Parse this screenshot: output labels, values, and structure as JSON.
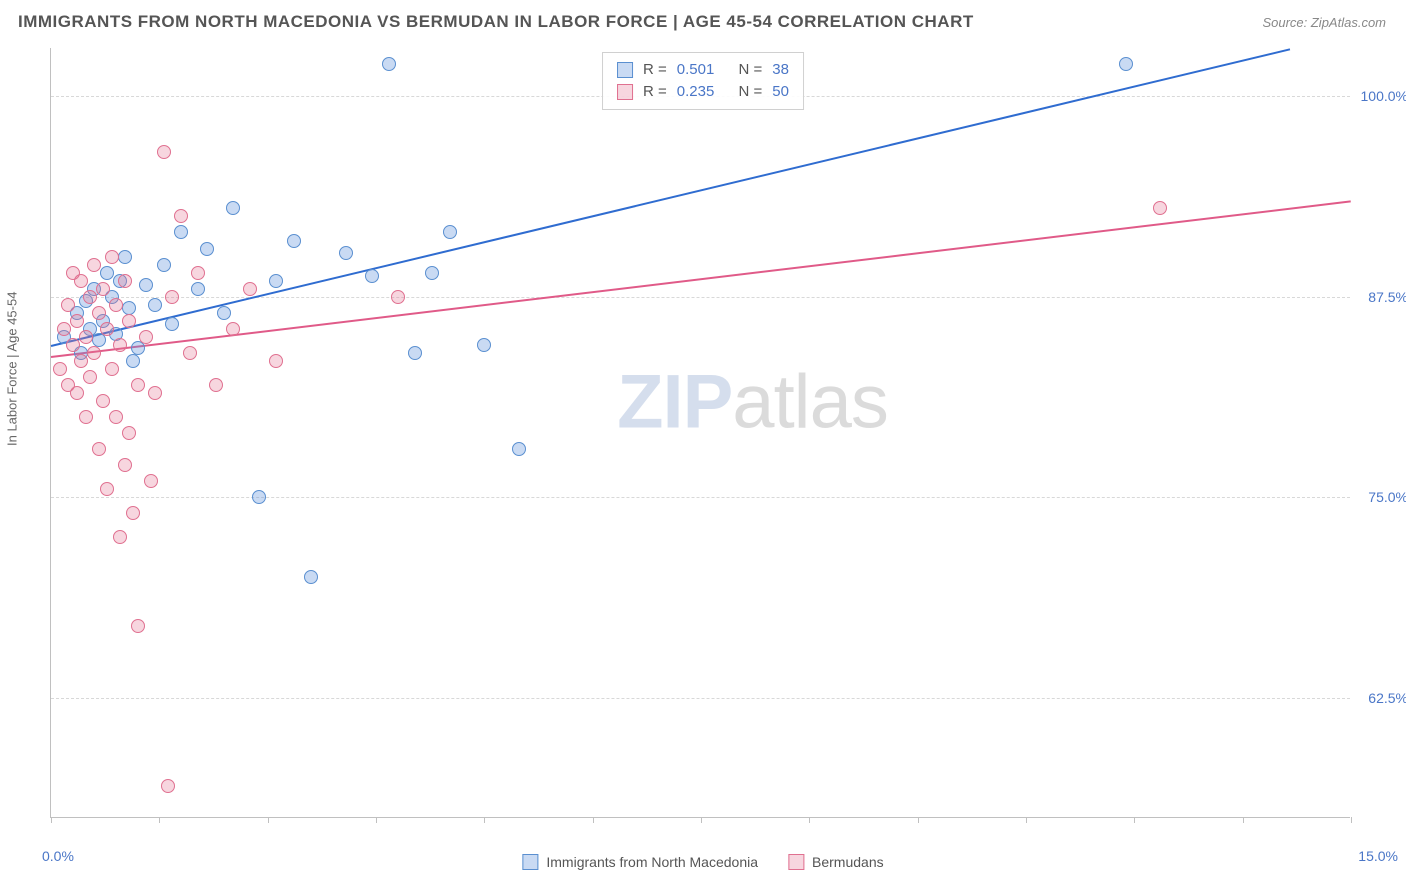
{
  "title": "IMMIGRANTS FROM NORTH MACEDONIA VS BERMUDAN IN LABOR FORCE | AGE 45-54 CORRELATION CHART",
  "source": "Source: ZipAtlas.com",
  "y_axis_title": "In Labor Force | Age 45-54",
  "chart": {
    "type": "scatter",
    "xlim": [
      0,
      15
    ],
    "ylim": [
      55,
      103
    ],
    "x_min_label": "0.0%",
    "x_max_label": "15.0%",
    "x_ticks": [
      0,
      1.25,
      2.5,
      3.75,
      5,
      6.25,
      7.5,
      8.75,
      10,
      11.25,
      12.5,
      13.75,
      15
    ],
    "y_gridlines": [
      62.5,
      75.0,
      87.5,
      100.0
    ],
    "y_tick_labels": [
      "62.5%",
      "75.0%",
      "87.5%",
      "100.0%"
    ],
    "background_color": "#ffffff",
    "grid_color": "#d8d8d8",
    "marker_size": 14,
    "marker_opacity": 0.35,
    "series": [
      {
        "name": "Immigrants from North Macedonia",
        "key": "blue",
        "color_fill": "#6496dc",
        "color_stroke": "#5a8fd0",
        "r": "0.501",
        "n": "38",
        "trend": {
          "x1": 0,
          "y1": 84.5,
          "x2": 14.3,
          "y2": 103.0,
          "width": 2
        },
        "points": [
          [
            0.15,
            85.0
          ],
          [
            0.3,
            86.5
          ],
          [
            0.35,
            84.0
          ],
          [
            0.4,
            87.2
          ],
          [
            0.45,
            85.5
          ],
          [
            0.5,
            88.0
          ],
          [
            0.55,
            84.8
          ],
          [
            0.6,
            86.0
          ],
          [
            0.65,
            89.0
          ],
          [
            0.7,
            87.5
          ],
          [
            0.75,
            85.2
          ],
          [
            0.8,
            88.5
          ],
          [
            0.85,
            90.0
          ],
          [
            0.9,
            86.8
          ],
          [
            0.95,
            83.5
          ],
          [
            1.0,
            84.3
          ],
          [
            1.1,
            88.2
          ],
          [
            1.2,
            87.0
          ],
          [
            1.3,
            89.5
          ],
          [
            1.4,
            85.8
          ],
          [
            1.5,
            91.5
          ],
          [
            1.7,
            88.0
          ],
          [
            1.8,
            90.5
          ],
          [
            2.0,
            86.5
          ],
          [
            2.1,
            93.0
          ],
          [
            2.4,
            75.0
          ],
          [
            2.6,
            88.5
          ],
          [
            2.8,
            91.0
          ],
          [
            3.0,
            70.0
          ],
          [
            3.4,
            90.2
          ],
          [
            3.7,
            88.8
          ],
          [
            3.9,
            102.0
          ],
          [
            4.2,
            84.0
          ],
          [
            4.4,
            89.0
          ],
          [
            4.6,
            91.5
          ],
          [
            5.0,
            84.5
          ],
          [
            5.4,
            78.0
          ],
          [
            12.4,
            102.0
          ]
        ]
      },
      {
        "name": "Bermudans",
        "key": "pink",
        "color_fill": "#e67896",
        "color_stroke": "#e07090",
        "r": "0.235",
        "n": "50",
        "trend": {
          "x1": 0,
          "y1": 83.8,
          "x2": 15.0,
          "y2": 93.5,
          "width": 2
        },
        "points": [
          [
            0.1,
            83.0
          ],
          [
            0.15,
            85.5
          ],
          [
            0.2,
            82.0
          ],
          [
            0.2,
            87.0
          ],
          [
            0.25,
            84.5
          ],
          [
            0.25,
            89.0
          ],
          [
            0.3,
            81.5
          ],
          [
            0.3,
            86.0
          ],
          [
            0.35,
            88.5
          ],
          [
            0.35,
            83.5
          ],
          [
            0.4,
            80.0
          ],
          [
            0.4,
            85.0
          ],
          [
            0.45,
            87.5
          ],
          [
            0.45,
            82.5
          ],
          [
            0.5,
            89.5
          ],
          [
            0.5,
            84.0
          ],
          [
            0.55,
            78.0
          ],
          [
            0.55,
            86.5
          ],
          [
            0.6,
            81.0
          ],
          [
            0.6,
            88.0
          ],
          [
            0.65,
            75.5
          ],
          [
            0.65,
            85.5
          ],
          [
            0.7,
            83.0
          ],
          [
            0.7,
            90.0
          ],
          [
            0.75,
            80.0
          ],
          [
            0.75,
            87.0
          ],
          [
            0.8,
            72.5
          ],
          [
            0.8,
            84.5
          ],
          [
            0.85,
            77.0
          ],
          [
            0.85,
            88.5
          ],
          [
            0.9,
            79.0
          ],
          [
            0.9,
            86.0
          ],
          [
            0.95,
            74.0
          ],
          [
            1.0,
            82.0
          ],
          [
            1.0,
            67.0
          ],
          [
            1.1,
            85.0
          ],
          [
            1.15,
            76.0
          ],
          [
            1.2,
            81.5
          ],
          [
            1.3,
            96.5
          ],
          [
            1.35,
            57.0
          ],
          [
            1.4,
            87.5
          ],
          [
            1.5,
            92.5
          ],
          [
            1.6,
            84.0
          ],
          [
            1.7,
            89.0
          ],
          [
            1.9,
            82.0
          ],
          [
            2.1,
            85.5
          ],
          [
            2.3,
            88.0
          ],
          [
            2.6,
            83.5
          ],
          [
            4.0,
            87.5
          ],
          [
            12.8,
            93.0
          ]
        ]
      }
    ]
  },
  "legend_top": {
    "r_prefix": "R =",
    "n_prefix": "N ="
  },
  "watermark": {
    "bold": "ZIP",
    "rest": "atlas"
  }
}
